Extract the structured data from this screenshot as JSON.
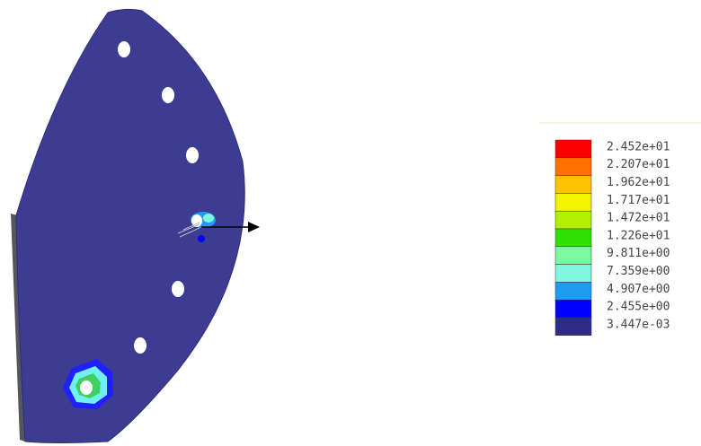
{
  "legend": {
    "levels": [
      {
        "label": "2.452e+01",
        "color": "#ff0000"
      },
      {
        "label": "2.207e+01",
        "color": "#ff7000"
      },
      {
        "label": "1.962e+01",
        "color": "#ffc400"
      },
      {
        "label": "1.717e+01",
        "color": "#f4f400"
      },
      {
        "label": "1.472e+01",
        "color": "#b0f000"
      },
      {
        "label": "1.226e+01",
        "color": "#30e000"
      },
      {
        "label": "9.811e+00",
        "color": "#7cf8a0"
      },
      {
        "label": "7.359e+00",
        "color": "#80f8e0"
      },
      {
        "label": "4.907e+00",
        "color": "#1e9cf0"
      },
      {
        "label": "2.455e+00",
        "color": "#0000ff"
      },
      {
        "label": "3.447e-03",
        "color": "#2c2c88"
      }
    ]
  }
}
